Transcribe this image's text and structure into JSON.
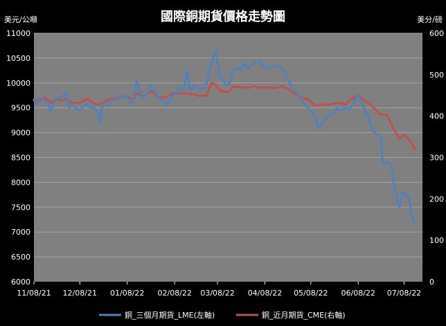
{
  "chart_data": {
    "type": "line",
    "title": "國際銅期貨價格走勢圖",
    "left_unit": "美元/公噸",
    "right_unit": "美分/磅",
    "x_ticks": [
      "11/08/21",
      "12/08/21",
      "01/08/22",
      "02/08/22",
      "03/08/22",
      "04/08/22",
      "05/08/22",
      "06/08/22",
      "07/08/22"
    ],
    "ylim_left": [
      6000,
      11000
    ],
    "ylim_right": [
      0,
      600
    ],
    "left_ticks": [
      6000,
      6500,
      7000,
      7500,
      8000,
      8500,
      9000,
      9500,
      10000,
      10500,
      11000
    ],
    "right_ticks": [
      0,
      100,
      200,
      300,
      400,
      500,
      600
    ],
    "grid": true,
    "legend_position": "bottom",
    "series": [
      {
        "name": "銅_三個月期貨_LME(左軸)",
        "axis": "left",
        "color": "#4f81bd",
        "points": [
          [
            "2021-11-08",
            9650
          ],
          [
            "2021-11-10",
            9580
          ],
          [
            "2021-11-12",
            9700
          ],
          [
            "2021-11-15",
            9650
          ],
          [
            "2021-11-17",
            9600
          ],
          [
            "2021-11-19",
            9420
          ],
          [
            "2021-11-22",
            9650
          ],
          [
            "2021-11-24",
            9700
          ],
          [
            "2021-11-26",
            9720
          ],
          [
            "2021-11-29",
            9800
          ],
          [
            "2021-12-01",
            9500
          ],
          [
            "2021-12-03",
            9560
          ],
          [
            "2021-12-06",
            9480
          ],
          [
            "2021-12-08",
            9450
          ],
          [
            "2021-12-10",
            9520
          ],
          [
            "2021-12-13",
            9580
          ],
          [
            "2021-12-15",
            9500
          ],
          [
            "2021-12-17",
            9520
          ],
          [
            "2021-12-20",
            9400
          ],
          [
            "2021-12-21",
            9200
          ],
          [
            "2021-12-23",
            9580
          ],
          [
            "2021-12-27",
            9550
          ],
          [
            "2021-12-29",
            9650
          ],
          [
            "2022-01-03",
            9700
          ],
          [
            "2022-01-05",
            9720
          ],
          [
            "2022-01-07",
            9750
          ],
          [
            "2022-01-10",
            9600
          ],
          [
            "2022-01-12",
            9650
          ],
          [
            "2022-01-14",
            10050
          ],
          [
            "2022-01-17",
            9750
          ],
          [
            "2022-01-19",
            9700
          ],
          [
            "2022-01-21",
            9780
          ],
          [
            "2022-01-24",
            9950
          ],
          [
            "2022-01-26",
            9850
          ],
          [
            "2022-01-28",
            9700
          ],
          [
            "2022-01-31",
            9650
          ],
          [
            "2022-02-02",
            9560
          ],
          [
            "2022-02-04",
            9600
          ],
          [
            "2022-02-07",
            9750
          ],
          [
            "2022-02-09",
            9800
          ],
          [
            "2022-02-11",
            9900
          ],
          [
            "2022-02-14",
            9850
          ],
          [
            "2022-02-16",
            10250
          ],
          [
            "2022-02-18",
            9850
          ],
          [
            "2022-02-21",
            9950
          ],
          [
            "2022-02-23",
            9900
          ],
          [
            "2022-02-25",
            9880
          ],
          [
            "2022-02-28",
            9900
          ],
          [
            "2022-03-01",
            10000
          ],
          [
            "2022-03-03",
            10300
          ],
          [
            "2022-03-07",
            10650
          ],
          [
            "2022-03-08",
            10400
          ],
          [
            "2022-03-10",
            10100
          ],
          [
            "2022-03-14",
            9950
          ],
          [
            "2022-03-16",
            10000
          ],
          [
            "2022-03-18",
            10250
          ],
          [
            "2022-03-21",
            10300
          ],
          [
            "2022-03-23",
            10250
          ],
          [
            "2022-03-25",
            10400
          ],
          [
            "2022-03-28",
            10300
          ],
          [
            "2022-03-30",
            10350
          ],
          [
            "2022-04-01",
            10400
          ],
          [
            "2022-04-05",
            10450
          ],
          [
            "2022-04-07",
            10300
          ],
          [
            "2022-04-11",
            10300
          ],
          [
            "2022-04-13",
            10350
          ],
          [
            "2022-04-19",
            10300
          ],
          [
            "2022-04-21",
            10250
          ],
          [
            "2022-04-25",
            9950
          ],
          [
            "2022-04-27",
            9850
          ],
          [
            "2022-04-29",
            9800
          ],
          [
            "2022-05-03",
            9600
          ],
          [
            "2022-05-06",
            9500
          ],
          [
            "2022-05-09",
            9400
          ],
          [
            "2022-05-11",
            9300
          ],
          [
            "2022-05-13",
            9100
          ],
          [
            "2022-05-16",
            9200
          ],
          [
            "2022-05-18",
            9300
          ],
          [
            "2022-05-20",
            9350
          ],
          [
            "2022-05-23",
            9400
          ],
          [
            "2022-05-25",
            9500
          ],
          [
            "2022-05-27",
            9450
          ],
          [
            "2022-05-31",
            9500
          ],
          [
            "2022-06-02",
            9450
          ],
          [
            "2022-06-06",
            9650
          ],
          [
            "2022-06-08",
            9750
          ],
          [
            "2022-06-10",
            9650
          ],
          [
            "2022-06-13",
            9400
          ],
          [
            "2022-06-15",
            9300
          ],
          [
            "2022-06-17",
            9050
          ],
          [
            "2022-06-21",
            8950
          ],
          [
            "2022-06-23",
            8900
          ],
          [
            "2022-06-24",
            8400
          ],
          [
            "2022-06-28",
            8400
          ],
          [
            "2022-06-30",
            8300
          ],
          [
            "2022-07-01",
            8000
          ],
          [
            "2022-07-05",
            7500
          ],
          [
            "2022-07-07",
            7800
          ],
          [
            "2022-07-11",
            7700
          ],
          [
            "2022-07-13",
            7350
          ],
          [
            "2022-07-15",
            7170
          ]
        ]
      },
      {
        "name": "銅_近月期貨_CME(右軸)",
        "axis": "right",
        "color": "#c0504d",
        "points": [
          [
            "2021-11-08",
            440
          ],
          [
            "2021-11-12",
            437
          ],
          [
            "2021-11-15",
            445
          ],
          [
            "2021-11-19",
            432
          ],
          [
            "2021-11-22",
            440
          ],
          [
            "2021-11-26",
            437
          ],
          [
            "2021-11-29",
            442
          ],
          [
            "2021-12-03",
            432
          ],
          [
            "2021-12-08",
            432
          ],
          [
            "2021-12-13",
            442
          ],
          [
            "2021-12-17",
            430
          ],
          [
            "2021-12-21",
            428
          ],
          [
            "2021-12-27",
            440
          ],
          [
            "2022-01-03",
            445
          ],
          [
            "2022-01-07",
            448
          ],
          [
            "2022-01-12",
            440
          ],
          [
            "2022-01-14",
            455
          ],
          [
            "2022-01-19",
            448
          ],
          [
            "2022-01-24",
            460
          ],
          [
            "2022-01-28",
            445
          ],
          [
            "2022-02-02",
            445
          ],
          [
            "2022-02-07",
            455
          ],
          [
            "2022-02-11",
            455
          ],
          [
            "2022-02-16",
            455
          ],
          [
            "2022-02-21",
            452
          ],
          [
            "2022-02-25",
            448
          ],
          [
            "2022-03-01",
            450
          ],
          [
            "2022-03-04",
            480
          ],
          [
            "2022-03-07",
            475
          ],
          [
            "2022-03-10",
            460
          ],
          [
            "2022-03-15",
            458
          ],
          [
            "2022-03-18",
            470
          ],
          [
            "2022-03-23",
            470
          ],
          [
            "2022-03-28",
            468
          ],
          [
            "2022-04-01",
            472
          ],
          [
            "2022-04-06",
            468
          ],
          [
            "2022-04-11",
            470
          ],
          [
            "2022-04-14",
            467
          ],
          [
            "2022-04-19",
            472
          ],
          [
            "2022-04-22",
            468
          ],
          [
            "2022-04-27",
            455
          ],
          [
            "2022-05-02",
            445
          ],
          [
            "2022-05-06",
            440
          ],
          [
            "2022-05-11",
            425
          ],
          [
            "2022-05-16",
            428
          ],
          [
            "2022-05-20",
            428
          ],
          [
            "2022-05-25",
            432
          ],
          [
            "2022-05-31",
            428
          ],
          [
            "2022-06-03",
            440
          ],
          [
            "2022-06-08",
            450
          ],
          [
            "2022-06-13",
            435
          ],
          [
            "2022-06-17",
            425
          ],
          [
            "2022-06-22",
            405
          ],
          [
            "2022-06-27",
            402
          ],
          [
            "2022-07-01",
            370
          ],
          [
            "2022-07-05",
            345
          ],
          [
            "2022-07-08",
            355
          ],
          [
            "2022-07-12",
            340
          ],
          [
            "2022-07-15",
            320
          ]
        ]
      }
    ]
  }
}
